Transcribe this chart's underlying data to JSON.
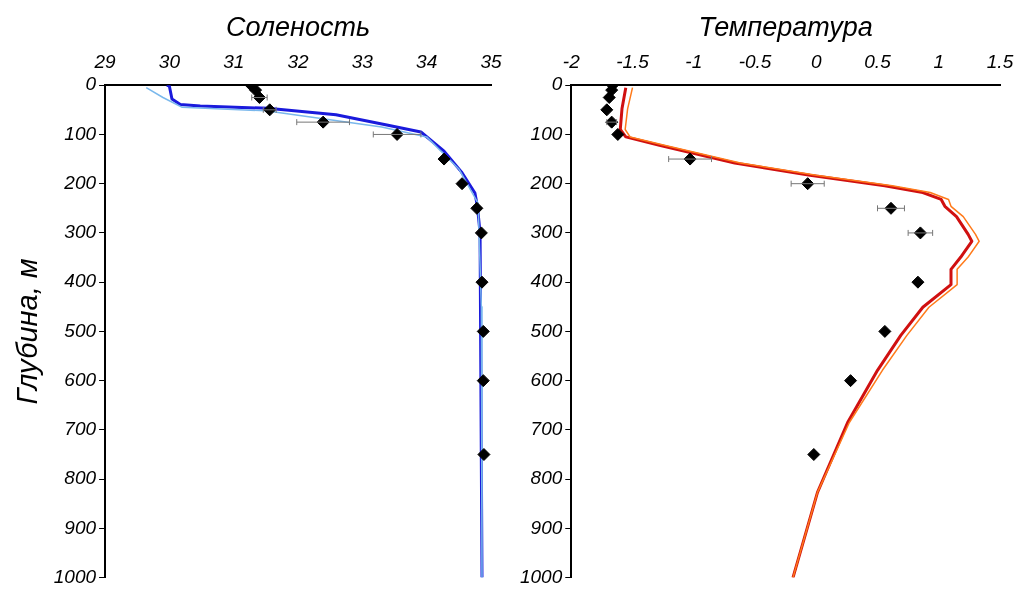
{
  "chart_data": [
    {
      "type": "line",
      "xlabel": "Соленость",
      "ylabel": "Глубина, м",
      "xlim": [
        29,
        35
      ],
      "xticks": [
        29,
        30,
        31,
        32,
        33,
        34,
        35
      ],
      "ylim": [
        1000,
        0
      ],
      "yticks": [
        0,
        100,
        200,
        300,
        400,
        500,
        600,
        700,
        800,
        900,
        1000
      ],
      "grid": false,
      "legend": false,
      "series": [
        {
          "type": "line",
          "color": "#7ab8ec",
          "marker": "none",
          "x": [
            29.64,
            29.9,
            30.2,
            31.5,
            33.3,
            34.0,
            34.5,
            34.8,
            34.85,
            34.86
          ],
          "values": [
            5,
            25,
            45,
            52,
            85,
            105,
            170,
            240,
            450,
            1000
          ]
        },
        {
          "type": "line",
          "color": "#1a1adc",
          "marker": "none",
          "x": [
            29.96,
            30.0,
            30.04,
            30.17,
            30.48,
            31.53,
            32.59,
            33.38,
            33.91,
            34.27,
            34.54,
            34.75,
            34.79,
            34.83,
            34.86
          ],
          "values": [
            0,
            2,
            28,
            39,
            42,
            47,
            60,
            81,
            95,
            134,
            176,
            219,
            247,
            300,
            1000
          ]
        },
        {
          "type": "scatter",
          "color": "#000000",
          "marker": "diamond",
          "x": [
            31.27,
            31.34,
            31.4,
            31.56,
            32.39,
            33.54,
            34.27,
            34.55,
            34.78,
            34.85,
            34.86,
            34.88,
            34.88,
            34.89
          ],
          "values": [
            0,
            10,
            25,
            50,
            75,
            100,
            150,
            200,
            250,
            300,
            400,
            500,
            600,
            750
          ],
          "xerrors": [
            null,
            null,
            0.12,
            0.1,
            0.41,
            0.37,
            null,
            null,
            null,
            null,
            null,
            null,
            null,
            null
          ]
        }
      ]
    },
    {
      "type": "line",
      "xlabel": "Температура",
      "xlim": [
        -2,
        1.5
      ],
      "xticks": [
        -2,
        -1.5,
        -1,
        -0.5,
        0,
        0.5,
        1,
        1.5
      ],
      "ylim": [
        1000,
        0
      ],
      "yticks": [
        0,
        100,
        200,
        300,
        400,
        500,
        600,
        700,
        800,
        900,
        1000
      ],
      "grid": false,
      "legend": false,
      "series": [
        {
          "type": "line",
          "color": "#ff7a1a",
          "marker": "none",
          "x": [
            -1.5,
            -1.54,
            -1.56,
            -1.52,
            -1.24,
            -0.62,
            0.0,
            0.62,
            0.93,
            1.08,
            1.1,
            1.2,
            1.3,
            1.33,
            1.24,
            1.15,
            1.15,
            0.92,
            0.74,
            0.54,
            0.27,
            0.01,
            -0.19
          ],
          "values": [
            5,
            48,
            90,
            105,
            122,
            158,
            183,
            204,
            218,
            232,
            246,
            267,
            303,
            317,
            349,
            374,
            405,
            451,
            508,
            579,
            685,
            827,
            1000
          ]
        },
        {
          "type": "line",
          "color": "#d01010",
          "marker": "none",
          "x": [
            -1.555,
            -1.586,
            -1.6,
            -1.555,
            -1.28,
            -0.665,
            -0.05,
            0.56,
            0.87,
            1.02,
            1.05,
            1.145,
            1.24,
            1.27,
            1.18,
            1.1,
            1.1,
            0.87,
            0.69,
            0.5,
            0.256,
            0.01,
            -0.19
          ],
          "values": [
            5,
            48,
            90,
            105,
            122,
            158,
            183,
            204,
            218,
            232,
            246,
            267,
            303,
            317,
            349,
            374,
            405,
            451,
            508,
            579,
            685,
            827,
            1000
          ]
        },
        {
          "type": "scatter",
          "color": "#000000",
          "marker": "diamond",
          "x": [
            -1.663,
            -1.67,
            -1.69,
            -1.71,
            -1.67,
            -1.62,
            -1.03,
            -0.07,
            0.61,
            0.85,
            0.83,
            0.56,
            0.28,
            -0.02
          ],
          "values": [
            0,
            10,
            25,
            50,
            75,
            100,
            150,
            200,
            250,
            300,
            400,
            500,
            600,
            750
          ],
          "xerrors": [
            null,
            null,
            null,
            null,
            0.04,
            null,
            0.175,
            0.135,
            0.11,
            0.1,
            null,
            null,
            null,
            null
          ]
        }
      ]
    }
  ]
}
